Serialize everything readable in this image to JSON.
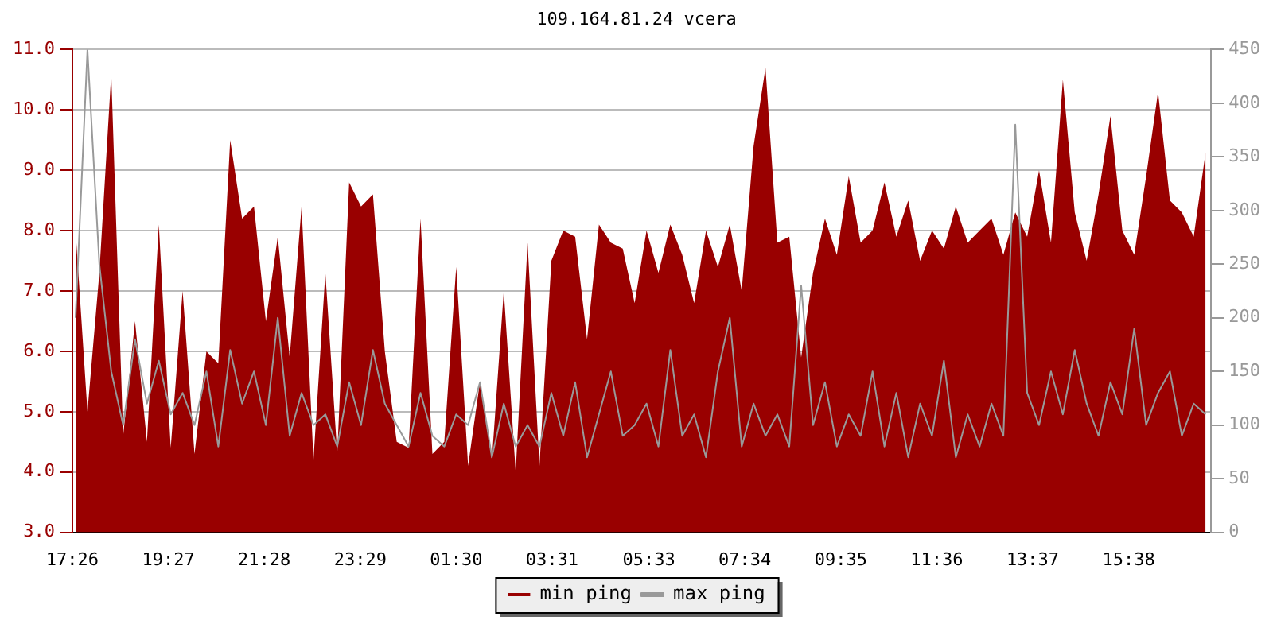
{
  "chart_data": {
    "type": "area",
    "title": "109.164.81.24 vcera",
    "xlim": [
      "--01-01T17:26",
      "--01-02T17:22"
    ],
    "xticks": [
      {
        "value": "--01-01T17:26",
        "label": "17:26"
      },
      {
        "value": "--01-01T19:27",
        "label": "19:27"
      },
      {
        "value": "--01-01T21:28",
        "label": "21:28"
      },
      {
        "value": "--01-01T23:29",
        "label": "23:29"
      },
      {
        "value": "--01-02T01:30",
        "label": "01:30"
      },
      {
        "value": "--01-02T03:31",
        "label": "03:31"
      },
      {
        "value": "--01-02T05:33",
        "label": "05:33"
      },
      {
        "value": "--01-02T07:34",
        "label": "07:34"
      },
      {
        "value": "--01-02T09:35",
        "label": "09:35"
      },
      {
        "value": "--01-02T11:36",
        "label": "11:36"
      },
      {
        "value": "--01-02T13:37",
        "label": "13:37"
      },
      {
        "value": "--01-02T15:38",
        "label": "15:38"
      }
    ],
    "x": [
      "--01-01T17:30",
      "--01-01T17:45",
      "--01-01T18:00",
      "--01-01T18:15",
      "--01-01T18:30",
      "--01-01T18:45",
      "--01-01T19:00",
      "--01-01T19:15",
      "--01-01T19:30",
      "--01-01T19:45",
      "--01-01T20:00",
      "--01-01T20:15",
      "--01-01T20:30",
      "--01-01T20:45",
      "--01-01T21:00",
      "--01-01T21:15",
      "--01-01T21:30",
      "--01-01T21:45",
      "--01-01T22:00",
      "--01-01T22:15",
      "--01-01T22:30",
      "--01-01T22:45",
      "--01-01T23:00",
      "--01-01T23:15",
      "--01-01T23:30",
      "--01-01T23:45",
      "--01-02T00:00",
      "--01-02T00:15",
      "--01-02T00:30",
      "--01-02T00:45",
      "--01-02T01:00",
      "--01-02T01:15",
      "--01-02T01:30",
      "--01-02T01:45",
      "--01-02T02:00",
      "--01-02T02:15",
      "--01-02T02:30",
      "--01-02T02:45",
      "--01-02T03:00",
      "--01-02T03:15",
      "--01-02T03:30",
      "--01-02T03:45",
      "--01-02T04:00",
      "--01-02T04:15",
      "--01-02T04:30",
      "--01-02T04:45",
      "--01-02T05:00",
      "--01-02T05:15",
      "--01-02T05:30",
      "--01-02T05:45",
      "--01-02T06:00",
      "--01-02T06:15",
      "--01-02T06:30",
      "--01-02T06:45",
      "--01-02T07:00",
      "--01-02T07:15",
      "--01-02T07:30",
      "--01-02T07:45",
      "--01-02T08:00",
      "--01-02T08:15",
      "--01-02T08:30",
      "--01-02T08:45",
      "--01-02T09:00",
      "--01-02T09:15",
      "--01-02T09:30",
      "--01-02T09:45",
      "--01-02T10:00",
      "--01-02T10:15",
      "--01-02T10:30",
      "--01-02T10:45",
      "--01-02T11:00",
      "--01-02T11:15",
      "--01-02T11:30",
      "--01-02T11:45",
      "--01-02T12:00",
      "--01-02T12:15",
      "--01-02T12:30",
      "--01-02T12:45",
      "--01-02T13:00",
      "--01-02T13:15",
      "--01-02T13:30",
      "--01-02T13:45",
      "--01-02T14:00",
      "--01-02T14:15",
      "--01-02T14:30",
      "--01-02T14:45",
      "--01-02T15:00",
      "--01-02T15:15",
      "--01-02T15:30",
      "--01-02T15:45",
      "--01-02T16:00",
      "--01-02T16:15",
      "--01-02T16:30",
      "--01-02T16:45",
      "--01-02T17:00",
      "--01-02T17:15"
    ],
    "ylim": [
      3,
      11
    ],
    "yticks": [
      {
        "value": 3,
        "label": "3.0"
      },
      {
        "value": 4,
        "label": "4.0"
      },
      {
        "value": 5,
        "label": "5.0"
      },
      {
        "value": 6,
        "label": "6.0"
      },
      {
        "value": 7,
        "label": "7.0"
      },
      {
        "value": 8,
        "label": "8.0"
      },
      {
        "value": 9,
        "label": "9.0"
      },
      {
        "value": 10,
        "label": "10.0"
      },
      {
        "value": 11,
        "label": "11.0"
      }
    ],
    "y2lim": [
      0,
      450
    ],
    "y2ticks": [
      0,
      50,
      100,
      150,
      200,
      250,
      300,
      350,
      400,
      450
    ],
    "grid": "y",
    "legend": "bottom",
    "series": [
      {
        "name": "min ping",
        "type": "area",
        "color": "#990000",
        "values": [
          8.0,
          5.0,
          7.3,
          10.6,
          4.6,
          6.5,
          4.5,
          8.1,
          4.4,
          7.0,
          4.3,
          6.0,
          5.8,
          9.5,
          8.2,
          8.4,
          6.5,
          7.9,
          5.9,
          8.4,
          4.2,
          7.3,
          4.3,
          8.8,
          8.4,
          8.6,
          6.0,
          4.5,
          4.4,
          8.2,
          4.3,
          4.5,
          7.4,
          4.1,
          5.5,
          4.2,
          7.0,
          4.0,
          7.8,
          4.1,
          7.5,
          8.0,
          7.9,
          6.2,
          8.1,
          7.8,
          7.7,
          6.8,
          8.0,
          7.3,
          8.1,
          7.6,
          6.8,
          8.0,
          7.4,
          8.1,
          7.0,
          9.4,
          10.7,
          7.8,
          7.9,
          5.9,
          7.3,
          8.2,
          7.6,
          8.9,
          7.8,
          8.0,
          8.8,
          7.9,
          8.5,
          7.5,
          8.0,
          7.7,
          8.4,
          7.8,
          8.0,
          8.2,
          7.6,
          8.3,
          7.9,
          9.0,
          7.8,
          10.5,
          8.3,
          7.5,
          8.6,
          9.9,
          8.0,
          7.6,
          8.9,
          10.3,
          8.5,
          8.3,
          7.9,
          9.3
        ]
      },
      {
        "name": "max ping",
        "type": "line",
        "axis": "y2",
        "color": "#999999",
        "values": [
          200,
          450,
          250,
          150,
          100,
          180,
          120,
          160,
          110,
          130,
          100,
          150,
          80,
          170,
          120,
          150,
          100,
          200,
          90,
          130,
          100,
          110,
          80,
          140,
          100,
          170,
          120,
          100,
          80,
          130,
          90,
          80,
          110,
          100,
          140,
          70,
          120,
          80,
          100,
          80,
          130,
          90,
          140,
          70,
          110,
          150,
          90,
          100,
          120,
          80,
          170,
          90,
          110,
          70,
          150,
          200,
          80,
          120,
          90,
          110,
          80,
          230,
          100,
          140,
          80,
          110,
          90,
          150,
          80,
          130,
          70,
          120,
          90,
          160,
          70,
          110,
          80,
          120,
          90,
          380,
          130,
          100,
          150,
          110,
          170,
          120,
          90,
          140,
          110,
          190,
          100,
          130,
          150,
          90,
          120,
          110
        ]
      }
    ]
  }
}
